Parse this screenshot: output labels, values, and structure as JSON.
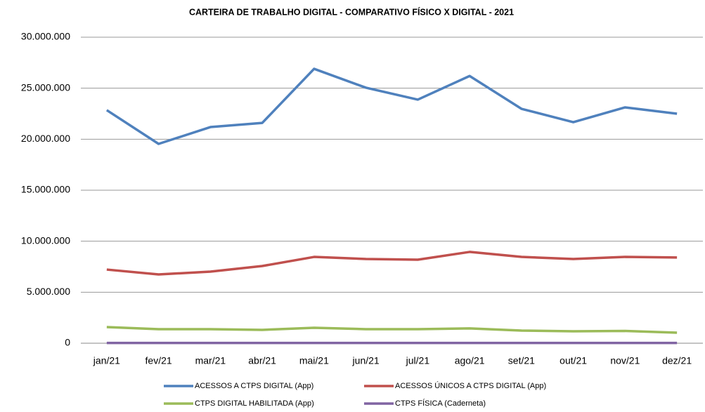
{
  "chart_data": {
    "type": "line",
    "title": "CARTEIRA DE TRABALHO DIGITAL  - COMPARATIVO FÍSICO X DIGITAL - 2021",
    "categories": [
      "jan/21",
      "fev/21",
      "mar/21",
      "abr/21",
      "mai/21",
      "jun/21",
      "jul/21",
      "ago/21",
      "set/21",
      "out/21",
      "nov/21",
      "dez/21"
    ],
    "series": [
      {
        "name": "ACESSOS A CTPS DIGITAL (App)",
        "color": "#4f81bd",
        "values": [
          22850000,
          19540000,
          21190000,
          21600000,
          26900000,
          25050000,
          23880000,
          26200000,
          22980000,
          21670000,
          23120000,
          22500000
        ]
      },
      {
        "name": "ACESSOS ÚNICOS A CTPS DIGITAL (App)",
        "color": "#c0504d",
        "values": [
          7220000,
          6740000,
          7020000,
          7570000,
          8460000,
          8260000,
          8190000,
          8950000,
          8460000,
          8260000,
          8460000,
          8400000
        ]
      },
      {
        "name": "CTPS DIGITAL HABILITADA (App)",
        "color": "#9bbb59",
        "values": [
          1580000,
          1380000,
          1380000,
          1310000,
          1510000,
          1380000,
          1380000,
          1450000,
          1240000,
          1170000,
          1200000,
          1030000
        ]
      },
      {
        "name": "CTPS FÍSICA (Caderneta)",
        "color": "#8064a2",
        "values": [
          30000,
          30000,
          30000,
          30000,
          30000,
          30000,
          30000,
          30000,
          30000,
          30000,
          30000,
          30000
        ]
      }
    ],
    "ylim": [
      0,
      30000000
    ],
    "yticks": [
      0,
      {
        "value": 5000000,
        "label": "5.000.000"
      },
      {
        "value": 10000000,
        "label": "10.000.000"
      },
      {
        "value": 15000000,
        "label": "15.000.000"
      },
      {
        "value": 20000000,
        "label": "20.000.000"
      },
      {
        "value": 25000000,
        "label": "25.000.000"
      },
      {
        "value": 30000000,
        "label": "30.000.000"
      }
    ],
    "grid": true,
    "legend": "bottom"
  }
}
